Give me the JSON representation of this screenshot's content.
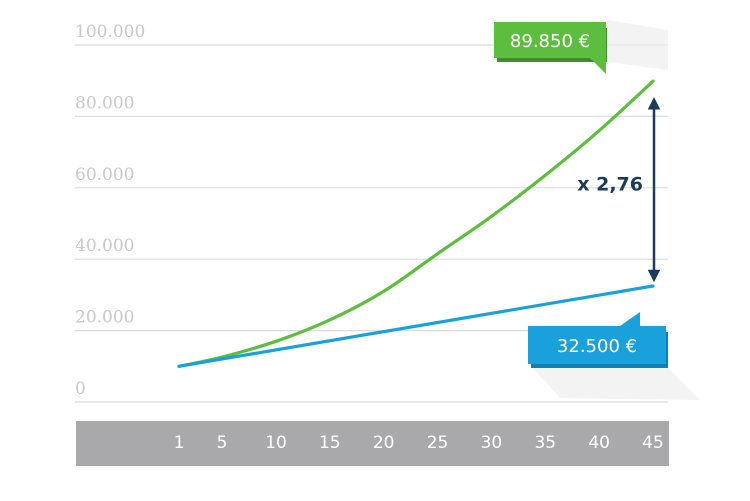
{
  "colors": {
    "green": "#5cbd3e",
    "green_dark": "#3f8f28",
    "blue": "#1aa1dc",
    "blue_dark": "#137eb0",
    "navy": "#1b3a5c",
    "grid": "#dcdcdc",
    "xbar": "#a9a9ab"
  },
  "chart_data": {
    "type": "line",
    "title": "",
    "xlabel": "",
    "ylabel": "",
    "ylim": [
      0,
      100000
    ],
    "xlim": [
      1,
      45
    ],
    "y_ticks": [
      "0",
      "20.000",
      "40.000",
      "60.000",
      "80.000",
      "100.000"
    ],
    "x_ticks": [
      "1",
      "5",
      "10",
      "15",
      "20",
      "25",
      "30",
      "35",
      "40",
      "45"
    ],
    "series": [
      {
        "color": "green",
        "x": [
          1,
          5,
          10,
          15,
          20,
          25,
          30,
          35,
          40,
          45
        ],
        "y": [
          10000,
          12600,
          17000,
          23000,
          31000,
          41500,
          52000,
          63500,
          76000,
          89850
        ]
      },
      {
        "color": "blue",
        "x": [
          1,
          45
        ],
        "y": [
          10000,
          32500
        ]
      }
    ],
    "annotations": {
      "green_value": "89.850 €",
      "blue_value": "32.500 €",
      "multiplier": "x 2,76"
    }
  }
}
